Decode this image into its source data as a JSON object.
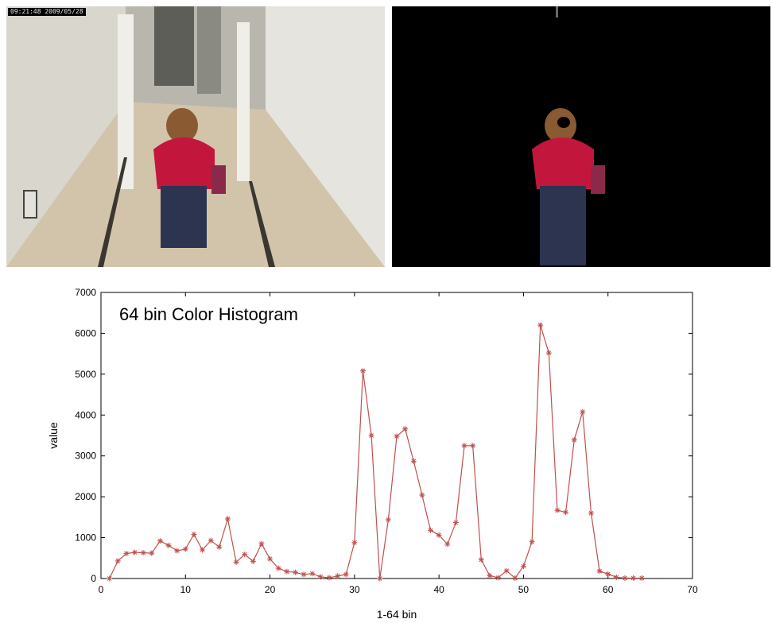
{
  "photos": {
    "left_timestamp": "09:21:48 2009/05/28"
  },
  "chart_data": {
    "type": "line",
    "title": "64 bin Color Histogram",
    "xlabel": "1-64 bin",
    "ylabel": "value",
    "xlim": [
      0,
      70
    ],
    "ylim": [
      0,
      7000
    ],
    "xticks": [
      0,
      10,
      20,
      30,
      40,
      50,
      60,
      70
    ],
    "yticks": [
      0,
      1000,
      2000,
      3000,
      4000,
      5000,
      6000,
      7000
    ],
    "grid": false,
    "legend": "none",
    "line_color": "#c0504d",
    "marker": "asterisk",
    "x": [
      1,
      2,
      3,
      4,
      5,
      6,
      7,
      8,
      9,
      10,
      11,
      12,
      13,
      14,
      15,
      16,
      17,
      18,
      19,
      20,
      21,
      22,
      23,
      24,
      25,
      26,
      27,
      28,
      29,
      30,
      31,
      32,
      33,
      34,
      35,
      36,
      37,
      38,
      39,
      40,
      41,
      42,
      43,
      44,
      45,
      46,
      47,
      48,
      49,
      50,
      51,
      52,
      53,
      54,
      55,
      56,
      57,
      58,
      59,
      60,
      61,
      62,
      63,
      64
    ],
    "values": [
      0,
      430,
      610,
      640,
      630,
      620,
      920,
      810,
      680,
      720,
      1080,
      700,
      930,
      770,
      1460,
      400,
      590,
      420,
      850,
      480,
      250,
      170,
      150,
      100,
      120,
      40,
      20,
      60,
      100,
      880,
      5080,
      3500,
      0,
      1440,
      3480,
      3660,
      2870,
      2040,
      1180,
      1060,
      840,
      1370,
      3250,
      3250,
      460,
      70,
      20,
      190,
      10,
      300,
      900,
      6200,
      5520,
      1670,
      1620,
      3390,
      4080,
      1600,
      180,
      110,
      30,
      10,
      10,
      10
    ]
  }
}
